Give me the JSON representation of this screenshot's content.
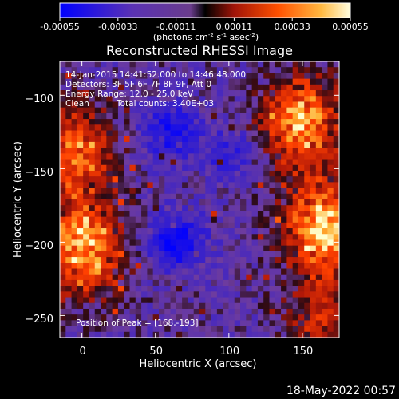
{
  "colorbar": {
    "ticks": [
      "-0.00055",
      "-0.00033",
      "-0.00011",
      "0.00011",
      "0.00033",
      "0.00055"
    ],
    "units_main": "(photons cm",
    "units_exp1": "-2",
    "units_mid": " s",
    "units_exp2": "-1",
    "units_end": " asec",
    "units_exp3": "-2",
    "units_close": ")"
  },
  "annotations": {
    "time_range": "14-Jan-2015 14:41:52.000 to 14:46:48.000",
    "detectors": "Detectors: 3F 5F 6F 7F 8F 9F, Att 0",
    "energy": "Energy Range: 12.0 - 25.0 keV",
    "clean": "Clean",
    "counts": "Total counts: 3.40E+03",
    "peak": "Position of Peak = [168,-193]"
  },
  "footer": {
    "timestamp": "18-May-2022 00:57"
  },
  "chart_data": {
    "type": "heatmap",
    "title": "Reconstructed RHESSI Image",
    "xlabel": "Heliocentric X (arcsec)",
    "ylabel": "Heliocentric Y (arcsec)",
    "xlim": [
      -15,
      175
    ],
    "ylim": [
      -265,
      -77
    ],
    "xticks": [
      0,
      50,
      100,
      150
    ],
    "yticks": [
      -100,
      -150,
      -200,
      -250
    ],
    "xtick_labels": [
      "0",
      "50",
      "100",
      "150"
    ],
    "ytick_labels": [
      "−100",
      "−150",
      "−200",
      "−250"
    ],
    "colorscale_range": [
      -0.00055,
      0.00055
    ],
    "colormap": [
      "#0000ff",
      "#3a22c8",
      "#6e3c9e",
      "#2a0a14",
      "#b01808",
      "#ff4000",
      "#ffb030",
      "#ffffd0"
    ],
    "bright_regions": [
      {
        "x": 165,
        "y": -190,
        "peak": 0.00055
      },
      {
        "x": 150,
        "y": -118,
        "peak": 0.00048
      },
      {
        "x": 0,
        "y": -205,
        "peak": 0.0005
      },
      {
        "x": -5,
        "y": -140,
        "peak": 0.0004
      },
      {
        "x": 165,
        "y": -252,
        "peak": 0.00025
      }
    ],
    "dark_regions": [
      {
        "x": 60,
        "y": -125,
        "value": -0.00033
      },
      {
        "x": 65,
        "y": -200,
        "value": -0.0004
      },
      {
        "x": 100,
        "y": -140,
        "value": -0.0002
      }
    ]
  }
}
